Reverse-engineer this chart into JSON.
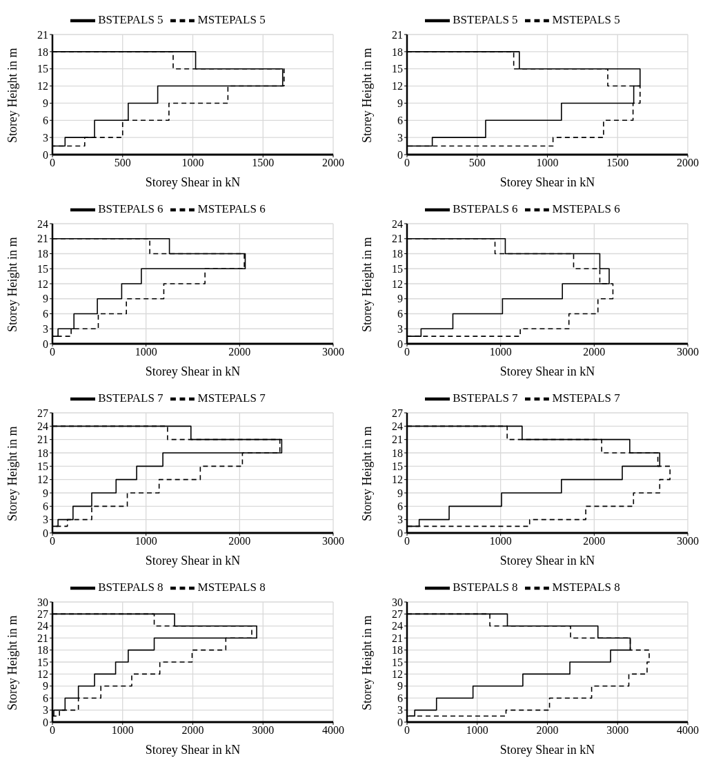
{
  "chart_data": [
    {
      "type": "line",
      "xlabel": "Storey Shear in kN",
      "ylabel": "Storey Height in m",
      "xlim": [
        0,
        2000
      ],
      "xticks": [
        0,
        500,
        1000,
        1500,
        2000
      ],
      "ylim": [
        0,
        21
      ],
      "yticks": [
        0,
        3,
        6,
        9,
        12,
        15,
        18,
        21
      ],
      "grid": true,
      "legend": "top",
      "marker": "none",
      "series": [
        {
          "name": "BSTEPALS 5",
          "color": "#000000",
          "line_style": "solid",
          "x": [
            0,
            1020,
            1020,
            1640,
            1640,
            750,
            750,
            540,
            540,
            300,
            300,
            90,
            90,
            0
          ],
          "values": [
            18,
            18,
            15,
            15,
            12,
            12,
            9,
            9,
            6,
            6,
            3,
            3,
            1.5,
            1.5
          ]
        },
        {
          "name": "MSTEPALS 5",
          "color": "#000000",
          "line_style": "dashed",
          "x": [
            0,
            860,
            860,
            1650,
            1650,
            1250,
            1250,
            830,
            830,
            500,
            500,
            230,
            230,
            0
          ],
          "values": [
            18,
            18,
            15,
            15,
            12,
            12,
            9,
            9,
            6,
            6,
            3,
            3,
            1.5,
            1.5
          ]
        }
      ]
    },
    {
      "type": "line",
      "xlabel": "Storey Shear in kN",
      "ylabel": "Storey Height in m",
      "xlim": [
        0,
        2000
      ],
      "xticks": [
        0,
        500,
        1000,
        1500,
        2000
      ],
      "ylim": [
        0,
        21
      ],
      "yticks": [
        0,
        3,
        6,
        9,
        12,
        15,
        18,
        21
      ],
      "grid": true,
      "legend": "top",
      "marker": "none",
      "series": [
        {
          "name": "BSTEPALS 5",
          "color": "#000000",
          "line_style": "solid",
          "x": [
            0,
            800,
            800,
            1660,
            1660,
            1615,
            1615,
            1100,
            1100,
            560,
            560,
            180,
            180,
            0
          ],
          "values": [
            18,
            18,
            15,
            15,
            12,
            12,
            9,
            9,
            6,
            6,
            3,
            3,
            1.5,
            1.5
          ]
        },
        {
          "name": "MSTEPALS 5",
          "color": "#000000",
          "line_style": "dashed",
          "x": [
            0,
            760,
            760,
            1430,
            1430,
            1660,
            1660,
            1610,
            1610,
            1400,
            1400,
            1040,
            1040,
            0
          ],
          "values": [
            18,
            18,
            15,
            15,
            12,
            12,
            9,
            9,
            6,
            6,
            3,
            3,
            1.5,
            1.5
          ]
        }
      ]
    },
    {
      "type": "line",
      "xlabel": "Storey Shear in kN",
      "ylabel": "Storey Height in m",
      "xlim": [
        0,
        3000
      ],
      "xticks": [
        0,
        1000,
        2000,
        3000
      ],
      "ylim": [
        0,
        24
      ],
      "yticks": [
        0,
        3,
        6,
        9,
        12,
        15,
        18,
        21,
        24
      ],
      "grid": true,
      "legend": "top",
      "marker": "none",
      "series": [
        {
          "name": "BSTEPALS 6",
          "color": "#000000",
          "line_style": "solid",
          "x": [
            0,
            1250,
            1250,
            2060,
            2060,
            950,
            950,
            740,
            740,
            480,
            480,
            230,
            230,
            60,
            60,
            0
          ],
          "values": [
            21,
            21,
            18,
            18,
            15,
            15,
            12,
            12,
            9,
            9,
            6,
            6,
            3,
            3,
            1.5,
            1.5
          ]
        },
        {
          "name": "MSTEPALS 6",
          "color": "#000000",
          "line_style": "dashed",
          "x": [
            0,
            1040,
            1040,
            2050,
            2050,
            1630,
            1630,
            1190,
            1190,
            790,
            790,
            490,
            490,
            200,
            200,
            0
          ],
          "values": [
            21,
            21,
            18,
            18,
            15,
            15,
            12,
            12,
            9,
            9,
            6,
            6,
            3,
            3,
            1.5,
            1.5
          ]
        }
      ]
    },
    {
      "type": "line",
      "xlabel": "Storey Shear in kN",
      "ylabel": "Storey Height in m",
      "xlim": [
        0,
        3000
      ],
      "xticks": [
        0,
        1000,
        2000,
        3000
      ],
      "ylim": [
        0,
        24
      ],
      "yticks": [
        0,
        3,
        6,
        9,
        12,
        15,
        18,
        21,
        24
      ],
      "grid": true,
      "legend": "top",
      "marker": "none",
      "series": [
        {
          "name": "BSTEPALS 6",
          "color": "#000000",
          "line_style": "solid",
          "x": [
            0,
            1050,
            1050,
            2060,
            2060,
            2160,
            2160,
            1660,
            1660,
            1020,
            1020,
            490,
            490,
            150,
            150,
            0
          ],
          "values": [
            21,
            21,
            18,
            18,
            15,
            15,
            12,
            12,
            9,
            9,
            6,
            6,
            3,
            3,
            1.5,
            1.5
          ]
        },
        {
          "name": "MSTEPALS 6",
          "color": "#000000",
          "line_style": "dashed",
          "x": [
            0,
            940,
            940,
            1780,
            1780,
            2060,
            2060,
            2200,
            2200,
            2040,
            2040,
            1730,
            1730,
            1210,
            1210,
            0
          ],
          "values": [
            21,
            21,
            18,
            18,
            15,
            15,
            12,
            12,
            9,
            9,
            6,
            6,
            3,
            3,
            1.5,
            1.5
          ]
        }
      ]
    },
    {
      "type": "line",
      "xlabel": "Storey Shear in kN",
      "ylabel": "Storey Height in m",
      "xlim": [
        0,
        3000
      ],
      "xticks": [
        0,
        1000,
        2000,
        3000
      ],
      "ylim": [
        0,
        27
      ],
      "yticks": [
        0,
        3,
        6,
        9,
        12,
        15,
        18,
        21,
        24,
        27
      ],
      "grid": true,
      "legend": "top",
      "marker": "none",
      "series": [
        {
          "name": "BSTEPALS 7",
          "color": "#000000",
          "line_style": "solid",
          "x": [
            0,
            1480,
            1480,
            2450,
            2450,
            1180,
            1180,
            900,
            900,
            680,
            680,
            420,
            420,
            220,
            220,
            60,
            60,
            0
          ],
          "values": [
            24,
            24,
            21,
            21,
            18,
            18,
            15,
            15,
            12,
            12,
            9,
            9,
            6,
            6,
            3,
            3,
            1.5,
            1.5
          ]
        },
        {
          "name": "MSTEPALS 7",
          "color": "#000000",
          "line_style": "dashed",
          "x": [
            0,
            1230,
            1230,
            2430,
            2430,
            2030,
            2030,
            1580,
            1580,
            1140,
            1140,
            800,
            800,
            420,
            420,
            160,
            160,
            0
          ],
          "values": [
            24,
            24,
            21,
            21,
            18,
            18,
            15,
            15,
            12,
            12,
            9,
            9,
            6,
            6,
            3,
            3,
            1.5,
            1.5
          ]
        }
      ]
    },
    {
      "type": "line",
      "xlabel": "Storey Shear in kN",
      "ylabel": "Storey Height in m",
      "xlim": [
        0,
        3000
      ],
      "xticks": [
        0,
        1000,
        2000,
        3000
      ],
      "ylim": [
        0,
        27
      ],
      "yticks": [
        0,
        3,
        6,
        9,
        12,
        15,
        18,
        21,
        24,
        27
      ],
      "grid": true,
      "legend": "top",
      "marker": "none",
      "series": [
        {
          "name": "BSTEPALS 7",
          "color": "#000000",
          "line_style": "solid",
          "x": [
            0,
            1230,
            1230,
            2380,
            2380,
            2700,
            2700,
            2300,
            2300,
            1650,
            1650,
            1010,
            1010,
            450,
            450,
            130,
            130,
            0
          ],
          "values": [
            24,
            24,
            21,
            21,
            18,
            18,
            15,
            15,
            12,
            12,
            9,
            9,
            6,
            6,
            3,
            3,
            1.5,
            1.5
          ]
        },
        {
          "name": "MSTEPALS 7",
          "color": "#000000",
          "line_style": "dashed",
          "x": [
            0,
            1070,
            1070,
            2080,
            2080,
            2680,
            2680,
            2810,
            2810,
            2700,
            2700,
            2420,
            2420,
            1910,
            1910,
            1310,
            1310,
            0
          ],
          "values": [
            24,
            24,
            21,
            21,
            18,
            18,
            15,
            15,
            12,
            12,
            9,
            9,
            6,
            6,
            3,
            3,
            1.5,
            1.5
          ]
        }
      ]
    },
    {
      "type": "line",
      "xlabel": "Storey Shear in kN",
      "ylabel": "Storey Height in m",
      "xlim": [
        0,
        4000
      ],
      "xticks": [
        0,
        1000,
        2000,
        3000,
        4000
      ],
      "ylim": [
        0,
        30
      ],
      "yticks": [
        0,
        3,
        6,
        9,
        12,
        15,
        18,
        21,
        24,
        27,
        30
      ],
      "grid": true,
      "legend": "top",
      "marker": "none",
      "series": [
        {
          "name": "BSTEPALS 8",
          "color": "#000000",
          "line_style": "solid",
          "x": [
            0,
            1740,
            1740,
            2910,
            2910,
            1450,
            1450,
            1080,
            1080,
            900,
            900,
            600,
            600,
            370,
            370,
            180,
            180,
            20,
            20,
            0
          ],
          "values": [
            27,
            27,
            24,
            24,
            21,
            21,
            18,
            18,
            15,
            15,
            12,
            12,
            9,
            9,
            6,
            6,
            3,
            3,
            1.5,
            1.5
          ]
        },
        {
          "name": "MSTEPALS 8",
          "color": "#000000",
          "line_style": "dashed",
          "x": [
            0,
            1450,
            1450,
            2840,
            2840,
            2470,
            2470,
            1990,
            1990,
            1530,
            1530,
            1130,
            1130,
            690,
            690,
            370,
            370,
            100,
            100,
            0
          ],
          "values": [
            27,
            27,
            24,
            24,
            21,
            21,
            18,
            18,
            15,
            15,
            12,
            12,
            9,
            9,
            6,
            6,
            3,
            3,
            1.5,
            1.5
          ]
        }
      ]
    },
    {
      "type": "line",
      "xlabel": "Storey Shear in kN",
      "ylabel": "Storey Height in m",
      "xlim": [
        0,
        4000
      ],
      "xticks": [
        0,
        1000,
        2000,
        3000,
        4000
      ],
      "ylim": [
        0,
        30
      ],
      "yticks": [
        0,
        3,
        6,
        9,
        12,
        15,
        18,
        21,
        24,
        27,
        30
      ],
      "grid": true,
      "legend": "top",
      "marker": "none",
      "series": [
        {
          "name": "BSTEPALS 8",
          "color": "#000000",
          "line_style": "solid",
          "x": [
            0,
            1430,
            1430,
            2720,
            2720,
            3180,
            3180,
            2900,
            2900,
            2320,
            2320,
            1650,
            1650,
            940,
            940,
            420,
            420,
            110,
            110,
            0
          ],
          "values": [
            27,
            27,
            24,
            24,
            21,
            21,
            18,
            18,
            15,
            15,
            12,
            12,
            9,
            9,
            6,
            6,
            3,
            3,
            1.5,
            1.5
          ]
        },
        {
          "name": "MSTEPALS 8",
          "color": "#000000",
          "line_style": "dashed",
          "x": [
            0,
            1180,
            1180,
            2330,
            2330,
            3180,
            3180,
            3450,
            3450,
            3420,
            3420,
            3160,
            3160,
            2630,
            2630,
            2030,
            2030,
            1410,
            1410,
            0
          ],
          "values": [
            27,
            27,
            24,
            24,
            21,
            21,
            18,
            18,
            15,
            15,
            12,
            12,
            9,
            9,
            6,
            6,
            3,
            3,
            1.5,
            1.5
          ]
        }
      ]
    }
  ]
}
